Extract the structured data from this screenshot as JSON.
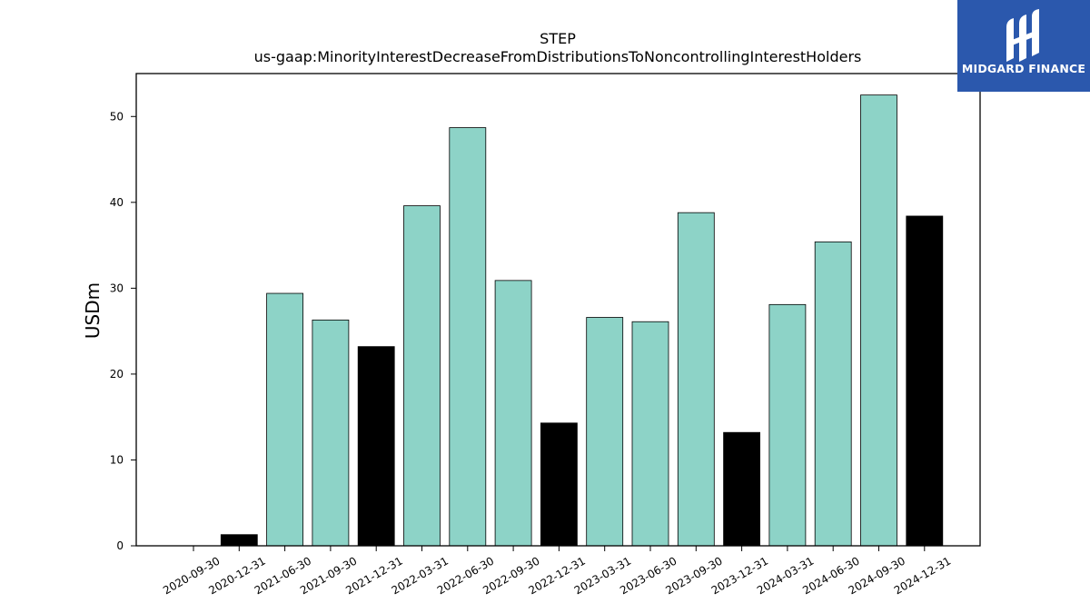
{
  "chart_data": {
    "type": "bar",
    "title": "STEP",
    "subtitle": "us-gaap:MinorityInterestDecreaseFromDistributionsToNoncontrollingInterestHolders",
    "xlabel": "",
    "ylabel": "USDm",
    "ylim": [
      0,
      55
    ],
    "yticks": [
      0,
      10,
      20,
      30,
      40,
      50
    ],
    "grid": false,
    "categories": [
      "2020-09-30",
      "2020-12-31",
      "2021-06-30",
      "2021-09-30",
      "2021-12-31",
      "2022-03-31",
      "2022-06-30",
      "2022-09-30",
      "2022-12-31",
      "2023-03-31",
      "2023-06-30",
      "2023-09-30",
      "2023-12-31",
      "2024-03-31",
      "2024-06-30",
      "2024-09-30",
      "2024-12-31"
    ],
    "values": [
      0,
      1.3,
      29.4,
      26.3,
      23.2,
      39.6,
      48.7,
      30.9,
      14.3,
      26.6,
      26.1,
      38.8,
      13.2,
      28.1,
      35.4,
      52.5,
      38.4
    ],
    "colors": [
      "#8dd3c7",
      "#000000",
      "#8dd3c7",
      "#8dd3c7",
      "#000000",
      "#8dd3c7",
      "#8dd3c7",
      "#8dd3c7",
      "#000000",
      "#8dd3c7",
      "#8dd3c7",
      "#8dd3c7",
      "#000000",
      "#8dd3c7",
      "#8dd3c7",
      "#8dd3c7",
      "#000000"
    ]
  },
  "logo": {
    "text": "MIDGARD FINANCE",
    "background": "#2b58ad"
  }
}
